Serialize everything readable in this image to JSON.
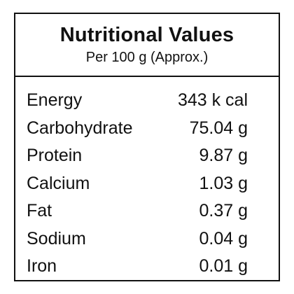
{
  "header": {
    "title": "Nutritional Values",
    "subtitle": "Per 100 g (Approx.)"
  },
  "table": {
    "rows": [
      [
        "Energy",
        "343 k cal"
      ],
      [
        "Carbohydrate",
        "75.04 g"
      ],
      [
        "Protein",
        "9.87 g"
      ],
      [
        "Calcium",
        "1.03 g"
      ],
      [
        "Fat",
        "0.37 g"
      ],
      [
        "Sodium",
        "0.04 g"
      ],
      [
        "Iron",
        "0.01 g"
      ]
    ]
  }
}
